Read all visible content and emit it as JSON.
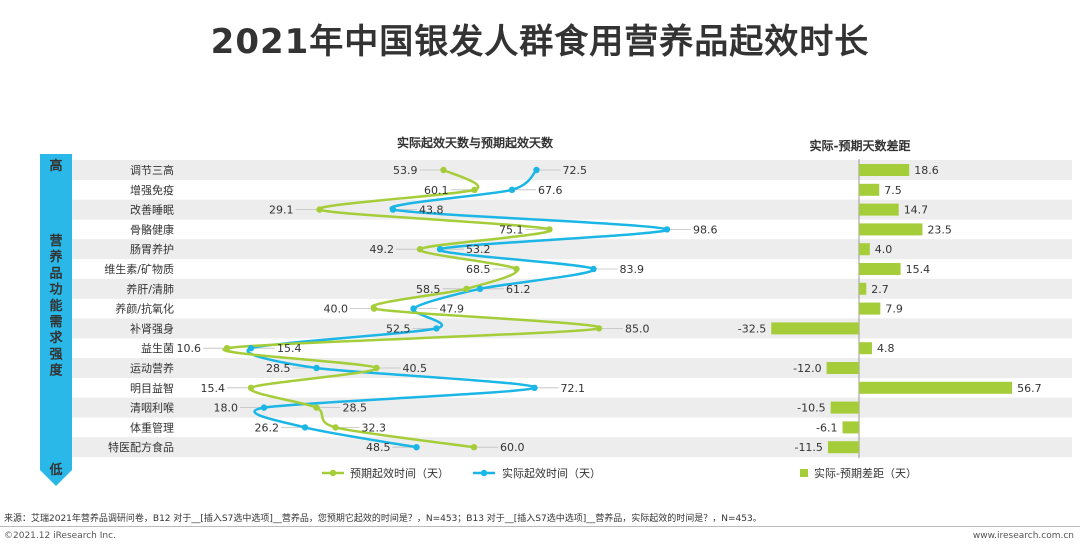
{
  "title": "2021年中国银发人群食用营养品起效时长",
  "colors": {
    "expected": "#A5CD39",
    "actual": "#1BB6E6",
    "gap": "#A5CD39",
    "band": "#EDEDED",
    "arrow": "#29B8E8"
  },
  "axis": {
    "high": "高",
    "low": "低",
    "label": [
      "营",
      "养",
      "品",
      "功",
      "能",
      "需",
      "求",
      "强",
      "度"
    ]
  },
  "chart_data": [
    {
      "type": "line",
      "title": "实际起效天数与预期起效天数",
      "categories": [
        "调节三高",
        "增强免疫",
        "改善睡眠",
        "骨骼健康",
        "肠胃养护",
        "维生素/矿物质",
        "养肝/清肺",
        "养颜/抗氧化",
        "补肾强身",
        "益生菌",
        "运动营养",
        "明目益智",
        "清咽利喉",
        "体重管理",
        "特医配方食品"
      ],
      "series": [
        {
          "name": "预期起效时间（天）",
          "values": [
            53.9,
            60.1,
            29.1,
            75.1,
            49.2,
            68.5,
            58.5,
            40.0,
            85.0,
            10.6,
            40.5,
            15.4,
            28.5,
            32.3,
            60.0
          ]
        },
        {
          "name": "实际起效时间（天）",
          "values": [
            72.5,
            67.6,
            43.8,
            98.6,
            53.2,
            83.9,
            61.2,
            47.9,
            52.5,
            15.4,
            28.5,
            72.1,
            18.0,
            26.2,
            48.5
          ]
        }
      ],
      "labels": {
        "expected": [
          "53.9",
          "60.1",
          "29.1",
          "75.1",
          "49.2",
          "68.5",
          "58.5",
          "40.0",
          "85.0",
          "10.6",
          "40.5",
          "15.4",
          "28.5",
          "32.3",
          "60.0"
        ],
        "actual": [
          "72.5",
          "67.6",
          "43.8",
          "98.6",
          "53.2",
          "83.9",
          "61.2",
          "47.9",
          "52.5",
          "15.4",
          "28.5",
          "72.1",
          "18.0",
          "26.2",
          "48.5"
        ]
      }
    },
    {
      "type": "bar",
      "title": "实际-预期天数差距",
      "categories": [
        "调节三高",
        "增强免疫",
        "改善睡眠",
        "骨骼健康",
        "肠胃养护",
        "维生素/矿物质",
        "养肝/清肺",
        "养颜/抗氧化",
        "补肾强身",
        "益生菌",
        "运动营养",
        "明目益智",
        "清咽利喉",
        "体重管理",
        "特医配方食品"
      ],
      "series": [
        {
          "name": "实际-预期差距（天）",
          "values": [
            18.6,
            7.5,
            14.7,
            23.5,
            4.0,
            15.4,
            2.7,
            7.9,
            -32.5,
            4.8,
            -12.0,
            56.7,
            -10.5,
            -6.1,
            -11.5
          ]
        }
      ],
      "labels": [
        "18.6",
        "7.5",
        "14.7",
        "23.5",
        "4.0",
        "15.4",
        "2.7",
        "7.9",
        "-32.5",
        "4.8",
        "-12.0",
        "56.7",
        "-10.5",
        "-6.1",
        "-11.5"
      ]
    }
  ],
  "footer": {
    "source": "来源：艾瑞2021年营养品调研问卷，B12 对于__[插入S7选中选项]__营养品，您预期它起效的时间是？，N=453；B13 对于__[插入S7选中选项]__营养品，实际起效的时间是？，N=453。",
    "copyright": "©2021.12 iResearch Inc.",
    "website": "www.iresearch.com.cn"
  }
}
